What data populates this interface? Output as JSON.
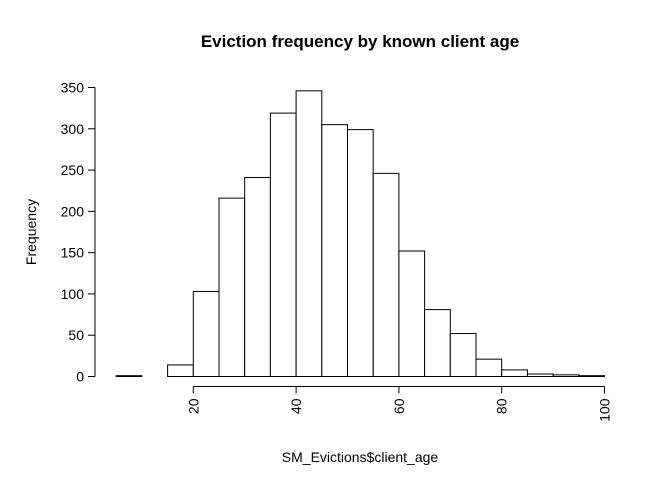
{
  "chart_data": {
    "type": "bar",
    "title": "Eviction frequency by known client age",
    "xlabel": "SM_Evictions$client_age",
    "ylabel": "Frequency",
    "bin_edges": [
      5,
      10,
      15,
      20,
      25,
      30,
      35,
      40,
      45,
      50,
      55,
      60,
      65,
      70,
      75,
      80,
      85,
      90,
      95,
      100
    ],
    "values": [
      1,
      0,
      14,
      103,
      216,
      241,
      319,
      346,
      305,
      299,
      246,
      152,
      81,
      52,
      21,
      8,
      3,
      2,
      1
    ],
    "xlim": [
      0,
      100
    ],
    "ylim": [
      0,
      350
    ],
    "x_ticks": [
      20,
      40,
      60,
      80,
      100
    ],
    "y_ticks": [
      0,
      50,
      100,
      150,
      200,
      250,
      300,
      350
    ],
    "grid": false,
    "legend": "none",
    "bar_fill": "#ffffff",
    "bar_stroke": "#000000"
  }
}
